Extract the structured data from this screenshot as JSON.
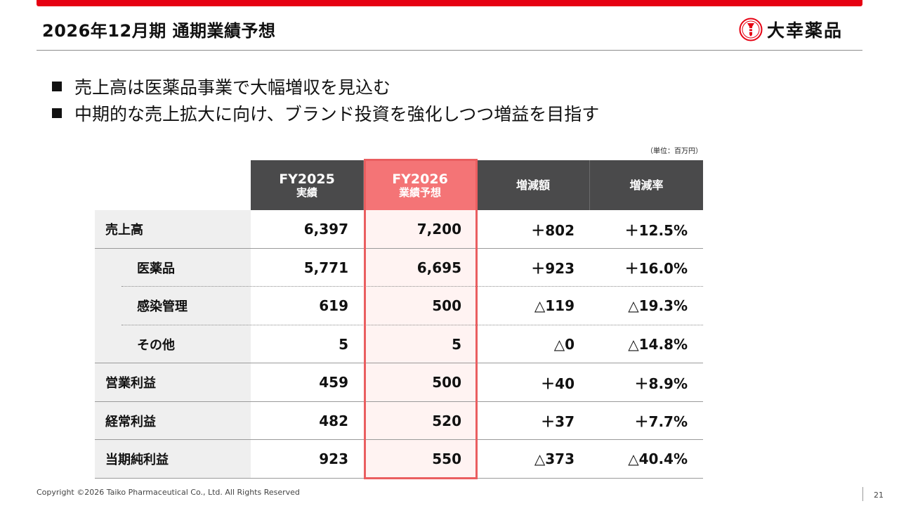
{
  "header": {
    "title": "2026年12月期 通期業績予想",
    "logo_text": "大幸薬品",
    "accent_color": "#e60012"
  },
  "bullets": [
    "売上高は医薬品事業で大幅増収を見込む",
    "中期的な売上拡大に向け、ブランド投資を強化しつつ増益を目指す"
  ],
  "table": {
    "unit_note": "（単位：百万円）",
    "columns": [
      {
        "main": "FY2025",
        "sub": "実績"
      },
      {
        "main": "FY2026",
        "sub": "業績予想"
      },
      {
        "label": "増減額"
      },
      {
        "label": "増減率"
      }
    ],
    "highlight_color": "#f47476",
    "rows": [
      {
        "label": "売上高",
        "fy2025": "6,397",
        "fy2026": "7,200",
        "change": "＋802",
        "rate": "＋12.5%"
      },
      {
        "label": "医薬品",
        "fy2025": "5,771",
        "fy2026": "6,695",
        "change": "＋923",
        "rate": "＋16.0%"
      },
      {
        "label": "感染管理",
        "fy2025": "619",
        "fy2026": "500",
        "change": "△119",
        "rate": "△19.3%"
      },
      {
        "label": "その他",
        "fy2025": "5",
        "fy2026": "5",
        "change": "△0",
        "rate": "△14.8%"
      },
      {
        "label": "営業利益",
        "fy2025": "459",
        "fy2026": "500",
        "change": "＋40",
        "rate": "＋8.9%"
      },
      {
        "label": "経常利益",
        "fy2025": "482",
        "fy2026": "520",
        "change": "＋37",
        "rate": "＋7.7%"
      },
      {
        "label": "当期純利益",
        "fy2025": "923",
        "fy2026": "550",
        "change": "△373",
        "rate": "△40.4%"
      }
    ]
  },
  "footer": {
    "copyright": "Copyright ©2026 Taiko Pharmaceutical Co., Ltd. All Rights Reserved",
    "page_number": "21"
  }
}
